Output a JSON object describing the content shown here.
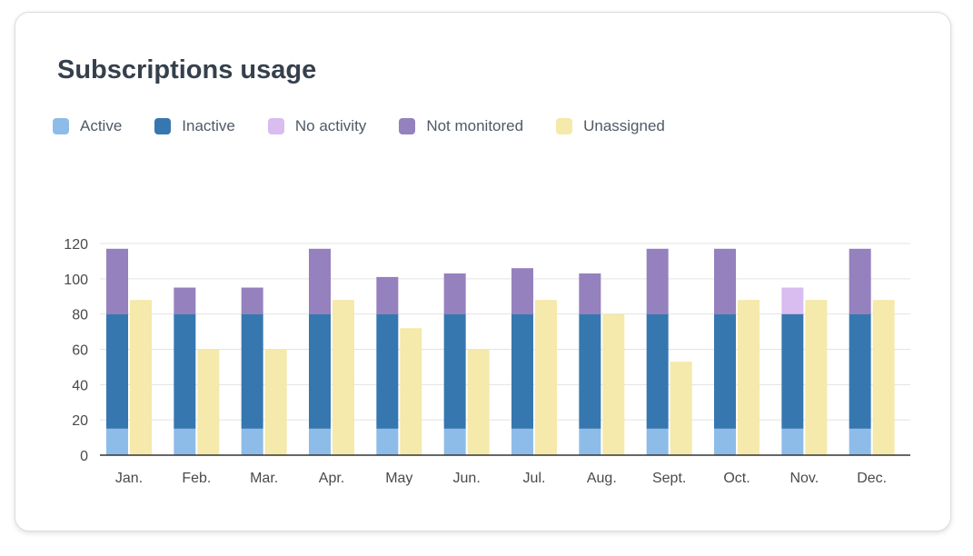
{
  "card": {
    "title": "Subscriptions usage"
  },
  "legend": [
    {
      "label": "Active",
      "color": "#8ebce8"
    },
    {
      "label": "Inactive",
      "color": "#3777b0"
    },
    {
      "label": "No activity",
      "color": "#d9bcf0"
    },
    {
      "label": "Not monitored",
      "color": "#9581bd"
    },
    {
      "label": "Unassigned",
      "color": "#f5e9ab"
    }
  ],
  "chart_data": {
    "type": "bar",
    "stacked": true,
    "categories": [
      "Jan.",
      "Feb.",
      "Mar.",
      "Apr.",
      "May",
      "Jun.",
      "Jul.",
      "Aug.",
      "Sept.",
      "Oct.",
      "Nov.",
      "Dec."
    ],
    "series": [
      {
        "name": "Active",
        "stack": "assigned",
        "color": "#8ebce8",
        "values": [
          15,
          15,
          15,
          15,
          15,
          15,
          15,
          15,
          15,
          15,
          15,
          15
        ]
      },
      {
        "name": "Inactive",
        "stack": "assigned",
        "color": "#3777b0",
        "values": [
          65,
          65,
          65,
          65,
          65,
          65,
          65,
          65,
          65,
          65,
          65,
          65
        ]
      },
      {
        "name": "No activity",
        "stack": "assigned",
        "color": "#d9bcf0",
        "values": [
          0,
          0,
          0,
          0,
          0,
          0,
          0,
          0,
          0,
          0,
          15,
          0
        ]
      },
      {
        "name": "Not monitored",
        "stack": "assigned",
        "color": "#9581bd",
        "values": [
          37,
          15,
          15,
          37,
          21,
          23,
          26,
          23,
          37,
          37,
          0,
          37
        ]
      },
      {
        "name": "Unassigned",
        "stack": "unassigned",
        "color": "#f5e9ab",
        "values": [
          88,
          60,
          60,
          88,
          72,
          60,
          88,
          80,
          53,
          88,
          88,
          88
        ]
      }
    ],
    "y_ticks": [
      "0",
      "20",
      "40",
      "60",
      "80",
      "100",
      "120"
    ],
    "ylim": [
      0,
      120
    ],
    "grid": true,
    "legend_position": "top-left",
    "xlabel": "",
    "ylabel": ""
  }
}
